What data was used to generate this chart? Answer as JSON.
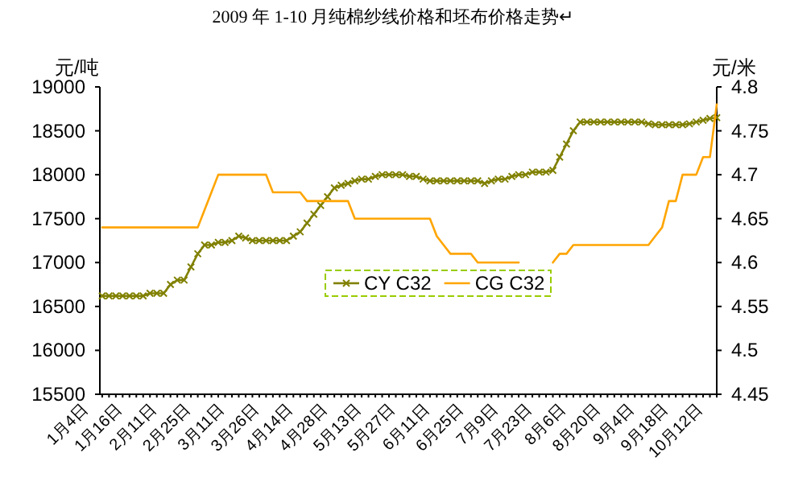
{
  "chart_data": {
    "type": "line",
    "title": "2009 年 1-10 月纯棉纱线价格和坯布价格走势↵",
    "ylabel": "元/吨",
    "y2label": "元/米",
    "categories": [
      "1月4日",
      null,
      null,
      null,
      null,
      "1月16日",
      null,
      null,
      null,
      null,
      "2月11日",
      null,
      null,
      null,
      null,
      "2月25日",
      null,
      null,
      null,
      null,
      "3月11日",
      null,
      null,
      null,
      null,
      "3月26日",
      null,
      null,
      null,
      null,
      "4月14日",
      null,
      null,
      null,
      null,
      "4月28日",
      null,
      null,
      null,
      null,
      "5月13日",
      null,
      null,
      null,
      null,
      "5月27日",
      null,
      null,
      null,
      null,
      "6月11日",
      null,
      null,
      null,
      null,
      "6月25日",
      null,
      null,
      null,
      null,
      "7月9日",
      null,
      null,
      null,
      null,
      "7月23日",
      null,
      null,
      null,
      null,
      "8月6日",
      null,
      null,
      null,
      null,
      "8月20日",
      null,
      null,
      null,
      null,
      "9月4日",
      null,
      null,
      null,
      null,
      "9月18日",
      null,
      null,
      null,
      null,
      "10月12日",
      null,
      null
    ],
    "series": [
      {
        "name": "CY C32",
        "color": "#808000",
        "marker": "cross",
        "values": [
          null,
          null,
          16620,
          16620,
          16620,
          16620,
          16620,
          16620,
          16620,
          16650,
          16650,
          16650,
          16750,
          16800,
          16800,
          16950,
          17100,
          17200,
          17200,
          17230,
          17230,
          17250,
          17300,
          17280,
          17250,
          17250,
          17250,
          17250,
          17250,
          17250,
          17300,
          17350,
          17450,
          17550,
          17650,
          17750,
          17850,
          17880,
          17900,
          17930,
          17950,
          17950,
          17980,
          18000,
          18000,
          18000,
          18000,
          17980,
          17980,
          17950,
          17930,
          17930,
          17930,
          17930,
          17930,
          17930,
          17930,
          17930,
          17900,
          17930,
          17950,
          17950,
          17980,
          18000,
          18000,
          18030,
          18030,
          18030,
          18050,
          18200,
          18350,
          18500,
          18600,
          18600,
          18600,
          18600,
          18600,
          18600,
          18600,
          18600,
          18600,
          18600,
          18580,
          18570,
          18570,
          18570,
          18570,
          18570,
          18580,
          18600,
          18620,
          18640,
          18650
        ]
      },
      {
        "name": "CG C32",
        "color": "#ffa500",
        "axis": "y2",
        "values": [
          null,
          null,
          4.64,
          4.64,
          4.64,
          4.64,
          4.64,
          4.64,
          4.64,
          4.64,
          4.64,
          4.64,
          4.64,
          4.64,
          4.64,
          4.64,
          4.64,
          4.66,
          4.68,
          4.7,
          4.7,
          4.7,
          4.7,
          4.7,
          4.7,
          4.7,
          4.7,
          4.68,
          4.68,
          4.68,
          4.68,
          4.68,
          4.67,
          4.67,
          4.67,
          4.67,
          4.67,
          4.67,
          4.67,
          4.65,
          4.65,
          4.65,
          4.65,
          4.65,
          4.65,
          4.65,
          4.65,
          4.65,
          4.65,
          4.65,
          4.65,
          4.63,
          4.62,
          4.61,
          4.61,
          4.61,
          4.61,
          4.6,
          4.6,
          4.6,
          4.6,
          4.6,
          4.6,
          4.6,
          null,
          null,
          null,
          null,
          4.6,
          4.61,
          4.61,
          4.62,
          4.62,
          4.62,
          4.62,
          4.62,
          4.62,
          4.62,
          4.62,
          4.62,
          4.62,
          4.62,
          4.62,
          4.63,
          4.64,
          4.67,
          4.67,
          4.7,
          4.7,
          4.7,
          4.72,
          4.72,
          4.78
        ]
      }
    ],
    "ylim": [
      15500,
      19000
    ],
    "yticks": [
      15500,
      16000,
      16500,
      17000,
      17500,
      18000,
      18500,
      19000
    ],
    "y2lim": [
      4.45,
      4.8
    ],
    "y2ticks": [
      {
        "value": 4.45,
        "label": "4.45"
      },
      {
        "value": 4.5,
        "label": "4.5"
      },
      {
        "value": 4.55,
        "label": "4.55"
      },
      {
        "value": 4.6,
        "label": "4.6"
      },
      {
        "value": 4.65,
        "label": "4.65"
      },
      {
        "value": 4.7,
        "label": "4.7"
      },
      {
        "value": 4.75,
        "label": "4.75"
      },
      {
        "value": 4.8,
        "label": "4.8"
      }
    ],
    "legend": "center"
  }
}
